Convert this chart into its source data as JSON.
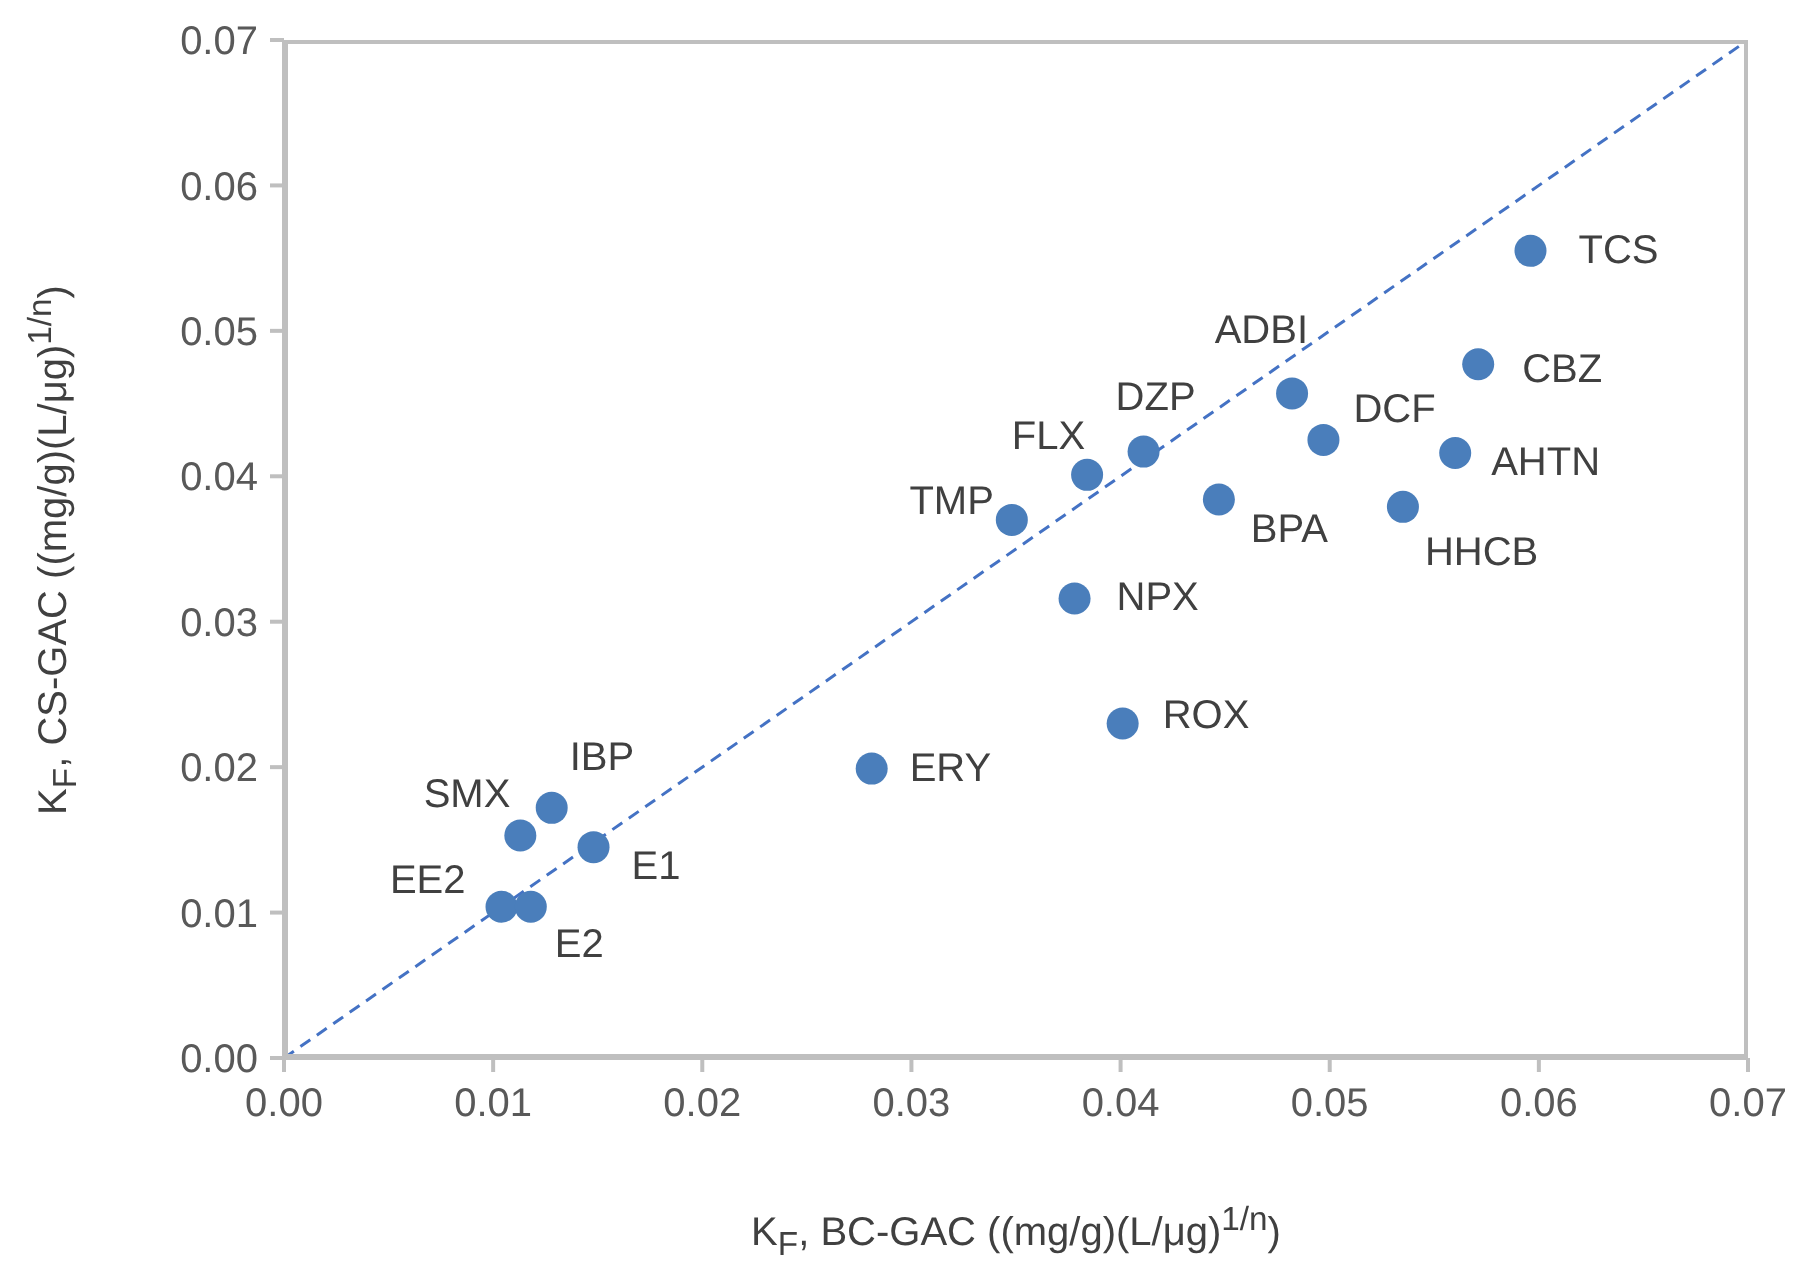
{
  "chart_data": {
    "type": "scatter",
    "xlabel": "K$_{F}$, BC-GAC ((mg/g)(L/μg)$^{1/n}$)",
    "ylabel": "K$_{F}$, CS-GAC ((mg/g)(L/μg)$^{1/n}$)",
    "xlim": [
      0,
      0.07
    ],
    "ylim": [
      0,
      0.07
    ],
    "xticks": [
      {
        "value": 0,
        "label": "0.00"
      },
      {
        "value": 0.01,
        "label": "0.01"
      },
      {
        "value": 0.02,
        "label": "0.02"
      },
      {
        "value": 0.03,
        "label": "0.03"
      },
      {
        "value": 0.04,
        "label": "0.04"
      },
      {
        "value": 0.05,
        "label": "0.05"
      },
      {
        "value": 0.06,
        "label": "0.06"
      },
      {
        "value": 0.07,
        "label": "0.07"
      }
    ],
    "yticks": [
      {
        "value": 0,
        "label": "0.00"
      },
      {
        "value": 0.01,
        "label": "0.01"
      },
      {
        "value": 0.02,
        "label": "0.02"
      },
      {
        "value": 0.03,
        "label": "0.03"
      },
      {
        "value": 0.04,
        "label": "0.04"
      },
      {
        "value": 0.05,
        "label": "0.05"
      },
      {
        "value": 0.06,
        "label": "0.06"
      },
      {
        "value": 0.07,
        "label": "0.07"
      }
    ],
    "grid": false,
    "legend": false,
    "series": [
      {
        "type": "line",
        "x": [
          0,
          0.07
        ],
        "values": [
          0,
          0.07
        ],
        "color": "#4472c4",
        "line_style": "dashed",
        "marker": "none"
      },
      {
        "type": "scatter",
        "color": "#4a7ebb",
        "marker": "circle",
        "x": [
          0.0113,
          0.0128,
          0.0148,
          0.0104,
          0.0118,
          0.0281,
          0.0348,
          0.0384,
          0.0411,
          0.0482,
          0.0497,
          0.0447,
          0.0378,
          0.0401,
          0.0535,
          0.056,
          0.0571,
          0.0596
        ],
        "values": [
          0.0153,
          0.0172,
          0.0145,
          0.0104,
          0.0104,
          0.0199,
          0.037,
          0.0401,
          0.0417,
          0.0457,
          0.0425,
          0.0384,
          0.0316,
          0.023,
          0.0379,
          0.0416,
          0.0477,
          0.0555
        ]
      }
    ],
    "annotations": [
      {
        "text": "SMX",
        "x": 0.0113,
        "y": 0.0153
      },
      {
        "text": "IBP",
        "x": 0.0128,
        "y": 0.0172
      },
      {
        "text": "E1",
        "x": 0.0148,
        "y": 0.0145
      },
      {
        "text": "EE2",
        "x": 0.0104,
        "y": 0.0104
      },
      {
        "text": "E2",
        "x": 0.0118,
        "y": 0.0104
      },
      {
        "text": "ERY",
        "x": 0.0281,
        "y": 0.0199
      },
      {
        "text": "TMP",
        "x": 0.0348,
        "y": 0.037
      },
      {
        "text": "FLX",
        "x": 0.0384,
        "y": 0.0401
      },
      {
        "text": "DZP",
        "x": 0.0411,
        "y": 0.0417
      },
      {
        "text": "ADBI",
        "x": 0.0482,
        "y": 0.0457
      },
      {
        "text": "DCF",
        "x": 0.0497,
        "y": 0.0425
      },
      {
        "text": "BPA",
        "x": 0.0447,
        "y": 0.0384
      },
      {
        "text": "NPX",
        "x": 0.0378,
        "y": 0.0316
      },
      {
        "text": "ROX",
        "x": 0.0401,
        "y": 0.023
      },
      {
        "text": "HHCB",
        "x": 0.0535,
        "y": 0.0379
      },
      {
        "text": "AHTN",
        "x": 0.056,
        "y": 0.0416
      },
      {
        "text": "CBZ",
        "x": 0.0571,
        "y": 0.0477
      },
      {
        "text": "TCS",
        "x": 0.0596,
        "y": 0.0555
      }
    ]
  }
}
